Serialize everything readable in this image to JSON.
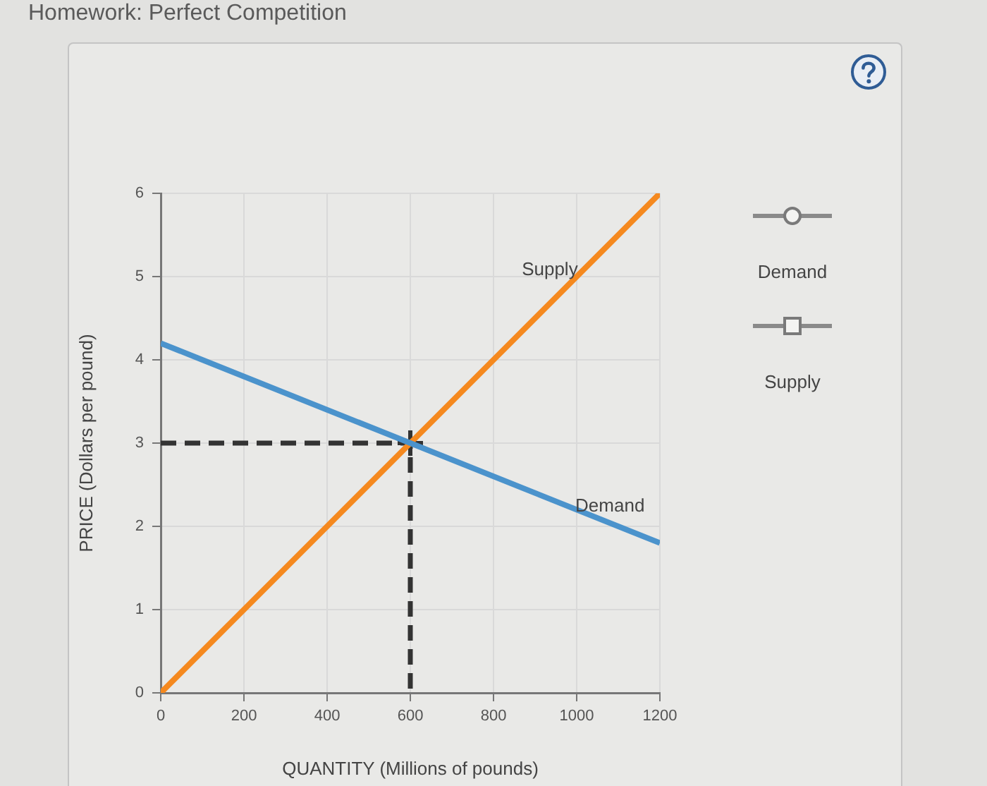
{
  "chart_data": {
    "type": "line",
    "title": "Homework: Perfect Competition",
    "xlabel": "QUANTITY (Millions of pounds)",
    "ylabel": "PRICE (Dollars per pound)",
    "xlim": [
      0,
      1200
    ],
    "xticks": [
      0,
      200,
      400,
      600,
      800,
      1000,
      1200
    ],
    "ylim": [
      0,
      6
    ],
    "yticks": [
      0,
      1,
      2,
      3,
      4,
      5,
      6
    ],
    "grid": true,
    "marker": "none",
    "legend": false,
    "series": [
      {
        "name": "Demand",
        "color": "#4b93cc",
        "x": [
          0,
          1200
        ],
        "values": [
          4.2,
          1.8
        ]
      },
      {
        "name": "Supply",
        "color": "#f5891f",
        "x": [
          0,
          1200
        ],
        "values": [
          0,
          6
        ]
      },
      {
        "color": "#333333",
        "x": [
          0,
          600,
          600
        ],
        "values": [
          3,
          3,
          0
        ],
        "line_style": "dashed"
      },
      {
        "type": "scatter",
        "color": "#333333",
        "x": [
          600
        ],
        "values": [
          3
        ],
        "marker": "cross"
      }
    ],
    "annotations": [
      "Demand",
      "Supply"
    ]
  }
}
